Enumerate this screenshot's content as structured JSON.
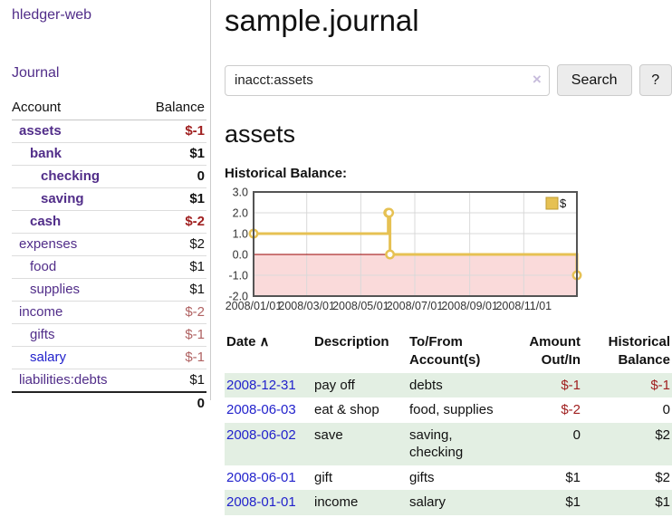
{
  "sidebar": {
    "brand": "hledger-web",
    "journal_link": "Journal",
    "accounts_table": {
      "headers": [
        "Account",
        "Balance"
      ],
      "rows": [
        {
          "name": "assets",
          "level": 1,
          "bold": true,
          "link_color": "purple",
          "balance": "$-1",
          "balance_style": "negstrong"
        },
        {
          "name": "bank",
          "level": 2,
          "bold": true,
          "link_color": "purple",
          "balance": "$1",
          "balance_style": "strong"
        },
        {
          "name": "checking",
          "level": 3,
          "bold": true,
          "link_color": "purple",
          "balance": "0",
          "balance_style": "strong"
        },
        {
          "name": "saving",
          "level": 3,
          "bold": true,
          "link_color": "purple",
          "balance": "$1",
          "balance_style": "strong"
        },
        {
          "name": "cash",
          "level": 2,
          "bold": true,
          "link_color": "purple",
          "balance": "$-2",
          "balance_style": "negstrong"
        },
        {
          "name": "expenses",
          "level": 1,
          "bold": false,
          "link_color": "purple",
          "balance": "$2",
          "balance_style": "plain"
        },
        {
          "name": "food",
          "level": 2,
          "bold": false,
          "link_color": "purple",
          "balance": "$1",
          "balance_style": "plain"
        },
        {
          "name": "supplies",
          "level": 2,
          "bold": false,
          "link_color": "purple",
          "balance": "$1",
          "balance_style": "plain"
        },
        {
          "name": "income",
          "level": 1,
          "bold": false,
          "link_color": "purple",
          "balance": "$-2",
          "balance_style": "negsoft"
        },
        {
          "name": "gifts",
          "level": 2,
          "bold": false,
          "link_color": "purple",
          "balance": "$-1",
          "balance_style": "negsoft"
        },
        {
          "name": "salary",
          "level": 2,
          "bold": false,
          "link_color": "blue",
          "balance": "$-1",
          "balance_style": "negsoft"
        },
        {
          "name": "liabilities:debts",
          "level": 1,
          "bold": false,
          "link_color": "purple",
          "balance": "$1",
          "balance_style": "plain"
        }
      ],
      "total": "0"
    }
  },
  "main": {
    "title": "sample.journal",
    "search": {
      "value": "inacct:assets",
      "clear_icon": "×",
      "button_label": "Search",
      "help_label": "?"
    },
    "account_heading": "assets",
    "chart_title": "Historical Balance:",
    "register": {
      "columns": [
        {
          "lines": [
            "Date"
          ],
          "align": "left",
          "sort_icon": "∧"
        },
        {
          "lines": [
            "Description"
          ],
          "align": "left"
        },
        {
          "lines": [
            "To/From",
            "Account(s)"
          ],
          "align": "left"
        },
        {
          "lines": [
            "Amount",
            "Out/In"
          ],
          "align": "right"
        },
        {
          "lines": [
            "Historical",
            "Balance"
          ],
          "align": "right"
        }
      ],
      "rows": [
        {
          "date": "2008-12-31",
          "description": "pay off",
          "accounts": [
            "debts"
          ],
          "amount": "$-1",
          "balance": "$-1"
        },
        {
          "date": "2008-06-03",
          "description": "eat & shop",
          "accounts": [
            "food, supplies"
          ],
          "amount": "$-2",
          "balance": "0"
        },
        {
          "date": "2008-06-02",
          "description": "save",
          "accounts": [
            "saving,",
            "checking"
          ],
          "amount": "0",
          "balance": "$2"
        },
        {
          "date": "2008-06-01",
          "description": "gift",
          "accounts": [
            "gifts"
          ],
          "amount": "$1",
          "balance": "$2"
        },
        {
          "date": "2008-01-01",
          "description": "income",
          "accounts": [
            "salary"
          ],
          "amount": "$1",
          "balance": "$1"
        }
      ]
    }
  },
  "chart_data": {
    "type": "line",
    "step": true,
    "title": "Historical Balance:",
    "series": [
      {
        "name": "$",
        "color": "#e6c153",
        "points": [
          [
            "2008-01-01",
            1
          ],
          [
            "2008-06-01",
            2
          ],
          [
            "2008-06-02",
            2
          ],
          [
            "2008-06-03",
            0
          ],
          [
            "2008-12-31",
            -1
          ]
        ]
      }
    ],
    "xlim": [
      "2008-01-01",
      "2008-12-31"
    ],
    "ylim": [
      -2,
      3
    ],
    "x_ticks": [
      {
        "label": "2008/01/01",
        "date": "2008-01-01"
      },
      {
        "label": "2008/03/01",
        "date": "2008-03-01"
      },
      {
        "label": "2008/05/01",
        "date": "2008-05-01"
      },
      {
        "label": "2008/07/01",
        "date": "2008-07-01"
      },
      {
        "label": "2008/09/01",
        "date": "2008-09-01"
      },
      {
        "label": "2008/11/01",
        "date": "2008-11-01"
      }
    ],
    "y_ticks": [
      {
        "label": "3.0",
        "value": 3
      },
      {
        "label": "2.0",
        "value": 2
      },
      {
        "label": "1.0",
        "value": 1
      },
      {
        "label": "0.0",
        "value": 0
      },
      {
        "label": "-1.0",
        "value": -1
      },
      {
        "label": "-2.0",
        "value": -2
      }
    ],
    "legend": {
      "label": "$",
      "position": "top-right"
    },
    "grid": true
  },
  "colors": {
    "link_purple": "#512d89",
    "link_blue": "#2222cc",
    "negative_strong": "#a02020",
    "negative_soft": "#b06262",
    "row_green": "#e3efe3",
    "chart_gold": "#e6c153",
    "chart_negative_bg": "#fadada",
    "chart_zero_line": "#990000"
  }
}
